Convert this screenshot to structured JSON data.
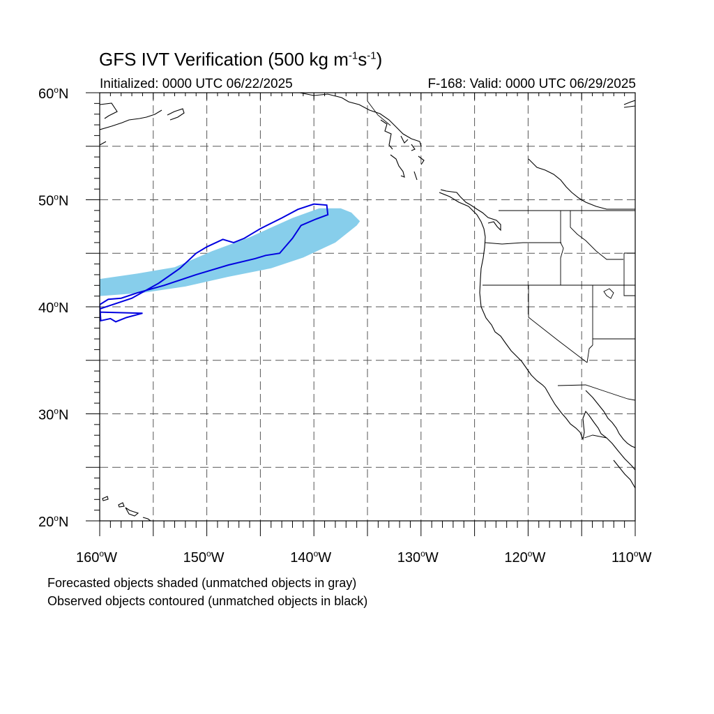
{
  "title_main": "GFS IVT Verification (500 kg m",
  "title_sup1": "-1",
  "title_mid": "s",
  "title_sup2": "-1",
  "title_end": ")",
  "subtitle_left": "Initialized: 0000 UTC 06/22/2025",
  "subtitle_right": "F-168: Valid: 0000 UTC 06/29/2025",
  "footnote_1": "Forecasted objects shaded (unmatched objects in gray)",
  "footnote_2": "Observed objects contoured (unmatched objects in black)",
  "map": {
    "lon_range": [
      -160,
      -110
    ],
    "lat_range": [
      20,
      60
    ],
    "gridlines": "dashed, every 5 degrees",
    "lat_labels": [
      {
        "value": 20,
        "deg": "o",
        "hemi": "N",
        "text": "20"
      },
      {
        "value": 30,
        "deg": "o",
        "hemi": "N",
        "text": "30"
      },
      {
        "value": 40,
        "deg": "o",
        "hemi": "N",
        "text": "40"
      },
      {
        "value": 50,
        "deg": "o",
        "hemi": "N",
        "text": "50"
      },
      {
        "value": 60,
        "deg": "o",
        "hemi": "N",
        "text": "60"
      }
    ],
    "lon_labels": [
      {
        "value": -160,
        "text": "160",
        "deg": "o",
        "hemi": "W"
      },
      {
        "value": -150,
        "text": "150",
        "deg": "o",
        "hemi": "W"
      },
      {
        "value": -140,
        "text": "140",
        "deg": "o",
        "hemi": "W"
      },
      {
        "value": -130,
        "text": "130",
        "deg": "o",
        "hemi": "W"
      },
      {
        "value": -120,
        "text": "120",
        "deg": "o",
        "hemi": "W"
      },
      {
        "value": -110,
        "text": "110",
        "deg": "o",
        "hemi": "W"
      }
    ],
    "forecast_object": {
      "color": "#87ceeb",
      "outline": [
        [
          -160,
          41
        ],
        [
          -156,
          41.3
        ],
        [
          -152,
          41.9
        ],
        [
          -148,
          42.8
        ],
        [
          -144,
          43.6
        ],
        [
          -141,
          44.6
        ],
        [
          -138,
          46
        ],
        [
          -136,
          47.6
        ],
        [
          -135.7,
          48
        ],
        [
          -136.5,
          48.8
        ],
        [
          -137.5,
          49.2
        ],
        [
          -139.5,
          49.2
        ],
        [
          -142,
          48.3
        ],
        [
          -146,
          46.5
        ],
        [
          -149.5,
          45.2
        ],
        [
          -153,
          43.7
        ],
        [
          -156.5,
          43.1
        ],
        [
          -160,
          42.6
        ]
      ]
    },
    "observed_object": {
      "color": "#0000e0",
      "outline": [
        [
          -160,
          39.8
        ],
        [
          -157,
          40.8
        ],
        [
          -154.5,
          42.2
        ],
        [
          -152.5,
          43.6
        ],
        [
          -151,
          45
        ],
        [
          -150,
          45.6
        ],
        [
          -148.5,
          46.3
        ],
        [
          -147.5,
          46
        ],
        [
          -146.5,
          46.4
        ],
        [
          -145,
          47.3
        ],
        [
          -143,
          48.3
        ],
        [
          -141.5,
          49.1
        ],
        [
          -140,
          49.6
        ],
        [
          -138.8,
          49.5
        ],
        [
          -138.7,
          48.6
        ],
        [
          -139.8,
          48.2
        ],
        [
          -141.2,
          47.6
        ],
        [
          -142,
          46.4
        ],
        [
          -143.2,
          45
        ],
        [
          -144.5,
          44.8
        ],
        [
          -145.5,
          44.5
        ],
        [
          -148,
          43.9
        ],
        [
          -151,
          43
        ],
        [
          -154,
          42
        ],
        [
          -156.5,
          41.3
        ],
        [
          -158,
          40.8
        ],
        [
          -159.2,
          40.7
        ],
        [
          -160,
          40.2
        ],
        [
          -159.9,
          38.7
        ],
        [
          -159,
          38.9
        ],
        [
          -158.5,
          38.6
        ],
        [
          -157.5,
          39
        ],
        [
          -156,
          39.4
        ],
        [
          -160,
          39.5
        ]
      ]
    }
  }
}
